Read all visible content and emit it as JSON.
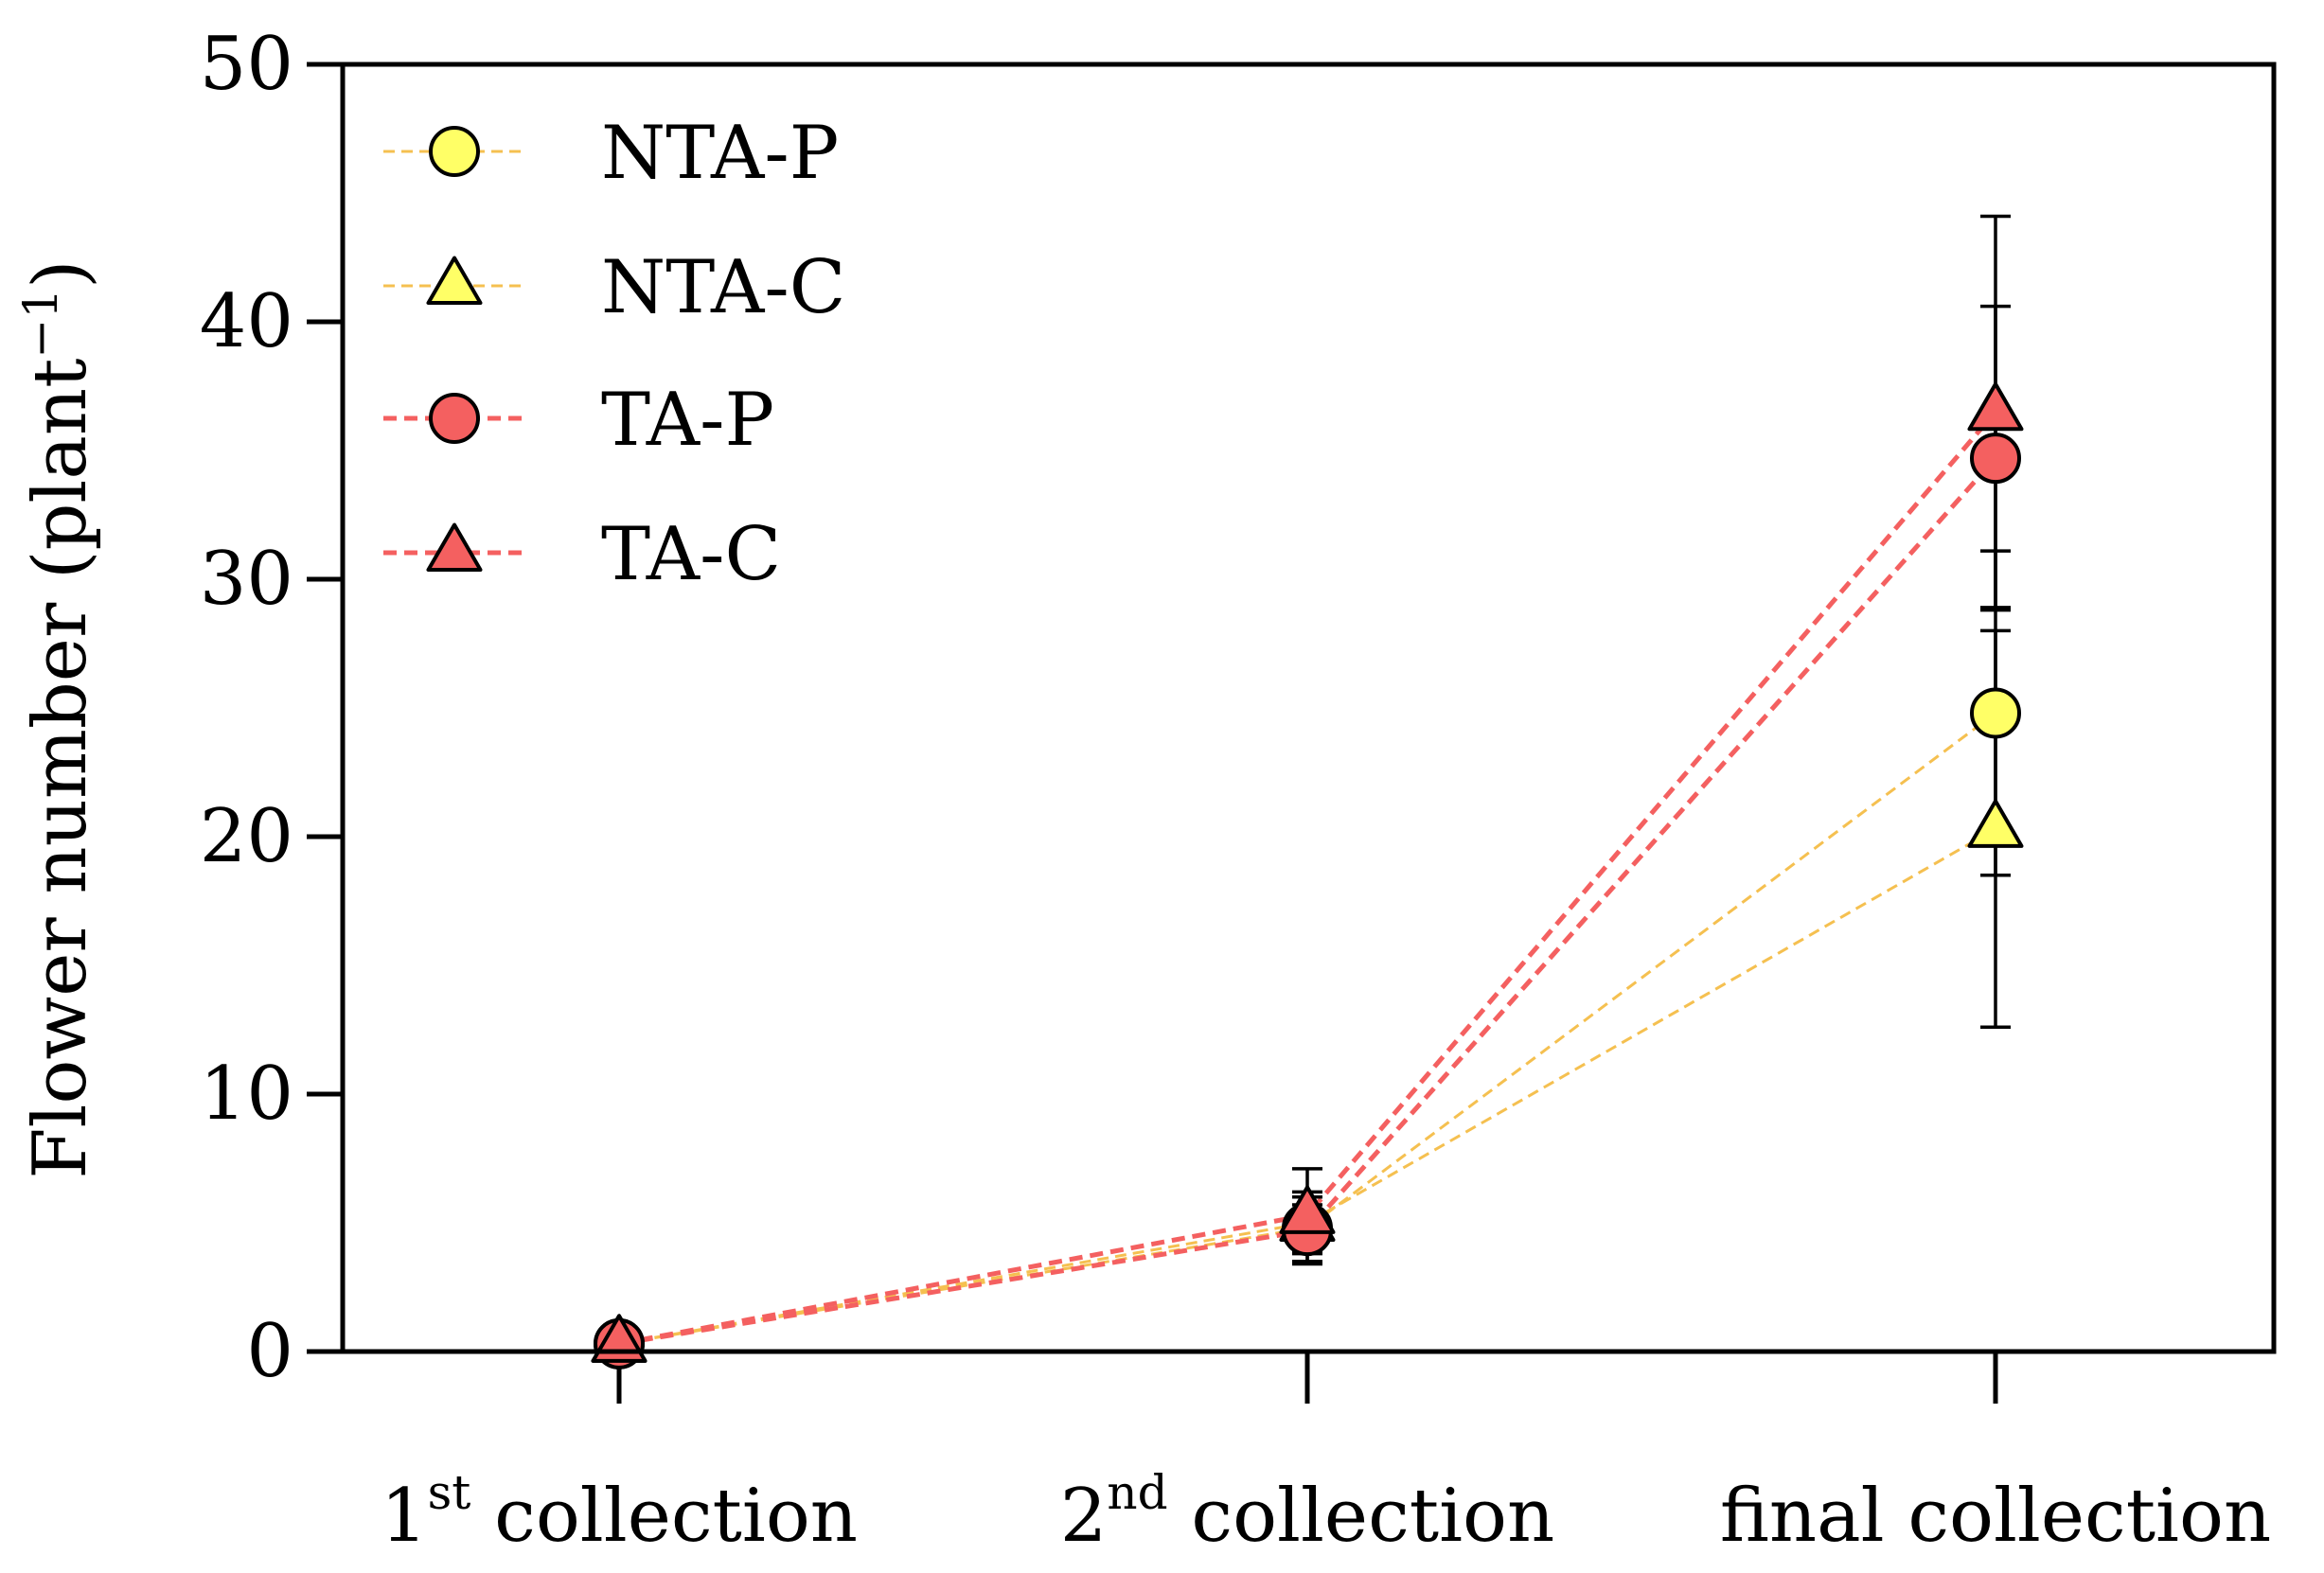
{
  "chart_data": {
    "type": "line",
    "categories": [
      {
        "num": "1",
        "sup": "st",
        "rest": " collection"
      },
      {
        "num": "2",
        "sup": "nd",
        "rest": " collection"
      },
      {
        "num": "",
        "sup": "",
        "rest": "final collection"
      }
    ],
    "ylabel": {
      "main": "Flower number (plant",
      "sup": "−1",
      "close": ")"
    },
    "ylim": [
      0,
      50
    ],
    "yticks": [
      "0",
      "10",
      "20",
      "30",
      "40",
      "50"
    ],
    "grid": false,
    "legend_position": "top-left",
    "series": [
      {
        "name": "NTA-P",
        "marker": "circle",
        "color": "#FFFF66",
        "line_color": "#F5C050",
        "line_style": "thin-dashed",
        "values": [
          0.3,
          4.8,
          24.8
        ],
        "errors": [
          0.1,
          0.9,
          6.3
        ]
      },
      {
        "name": "NTA-C",
        "marker": "triangle",
        "color": "#FFFF66",
        "line_color": "#F5C050",
        "line_style": "thin-dashed",
        "values": [
          0.3,
          5.0,
          20.3
        ],
        "errors": [
          0.1,
          1.2,
          7.7
        ]
      },
      {
        "name": "TA-P",
        "marker": "circle",
        "color": "#F46060",
        "line_color": "#F46060",
        "line_style": "thick-dashed",
        "values": [
          0.3,
          4.7,
          34.7
        ],
        "errors": [
          0.1,
          1.3,
          5.9
        ]
      },
      {
        "name": "TA-C",
        "marker": "triangle",
        "color": "#F46060",
        "line_color": "#F46060",
        "line_style": "thick-dashed",
        "values": [
          0.3,
          5.3,
          36.5
        ],
        "errors": [
          0.1,
          1.8,
          7.6
        ]
      }
    ]
  }
}
